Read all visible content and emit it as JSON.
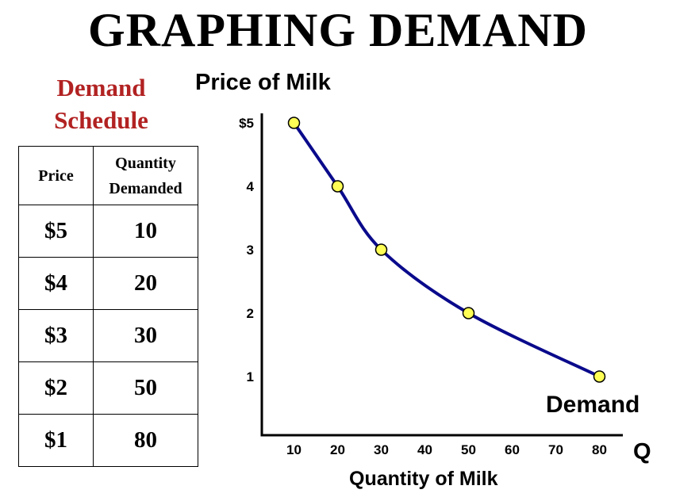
{
  "title": "GRAPHING DEMAND",
  "schedule": {
    "title_line1": "Demand",
    "title_line2": "Schedule",
    "header_price": "Price",
    "header_qty_line1": "Quantity",
    "header_qty_line2": "Demanded",
    "rows": [
      {
        "price": "$5",
        "qty": "10"
      },
      {
        "price": "$4",
        "qty": "20"
      },
      {
        "price": "$3",
        "qty": "30"
      },
      {
        "price": "$2",
        "qty": "50"
      },
      {
        "price": "$1",
        "qty": "80"
      }
    ]
  },
  "colors": {
    "curve": "#0a0a8c",
    "point_fill": "#ffff55",
    "title_red": "#b22222"
  },
  "chart_data": {
    "type": "line",
    "title": "",
    "ylabel": "Price of Milk",
    "xlabel": "Quantity of Milk",
    "x_axis_end_label": "Q",
    "series": [
      {
        "name": "Demand",
        "x": [
          10,
          20,
          30,
          50,
          80
        ],
        "y": [
          5,
          4,
          3,
          2,
          1
        ]
      }
    ],
    "x_ticks": [
      "10",
      "20",
      "30",
      "40",
      "50",
      "60",
      "70",
      "80"
    ],
    "y_ticks": [
      "$5",
      "4",
      "3",
      "2",
      "1"
    ],
    "xlim": [
      0,
      80
    ],
    "ylim": [
      0,
      5
    ],
    "grid": false
  }
}
